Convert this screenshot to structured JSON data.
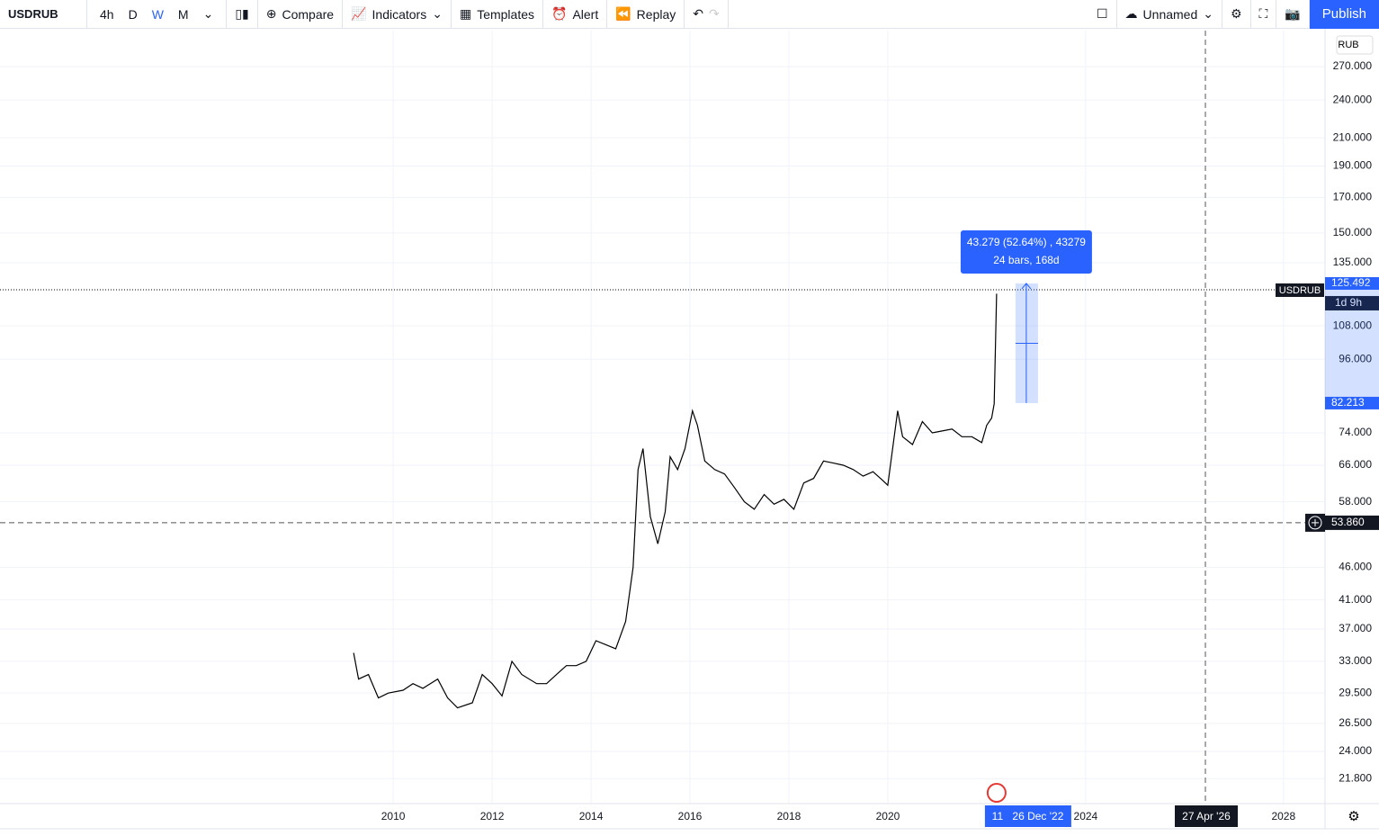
{
  "toolbar": {
    "symbol": "USDRUB",
    "intervals": [
      "4h",
      "D",
      "W",
      "M"
    ],
    "buttons": [
      "Compare",
      "Indicators",
      "Templates",
      "Alert",
      "Replay"
    ],
    "layout_name": "Unnamed",
    "publish": "Publish"
  },
  "chart_data": {
    "type": "line",
    "color": "#000000",
    "log_scale": true,
    "grid": true,
    "currency": "RUB",
    "x": [
      2009.2,
      2009.3,
      2009.5,
      2009.7,
      2009.9,
      2010.2,
      2010.4,
      2010.6,
      2010.9,
      2011.1,
      2011.3,
      2011.6,
      2011.8,
      2012.0,
      2012.2,
      2012.4,
      2012.6,
      2012.9,
      2013.1,
      2013.3,
      2013.5,
      2013.7,
      2013.9,
      2014.1,
      2014.3,
      2014.5,
      2014.7,
      2014.85,
      2014.95,
      2015.05,
      2015.2,
      2015.35,
      2015.5,
      2015.6,
      2015.75,
      2015.9,
      2016.05,
      2016.15,
      2016.3,
      2016.5,
      2016.7,
      2016.9,
      2017.1,
      2017.3,
      2017.5,
      2017.7,
      2017.9,
      2018.1,
      2018.3,
      2018.5,
      2018.7,
      2018.9,
      2019.1,
      2019.3,
      2019.5,
      2019.7,
      2019.9,
      2020.0,
      2020.2,
      2020.3,
      2020.5,
      2020.7,
      2020.9,
      2021.1,
      2021.3,
      2021.5,
      2021.7,
      2021.9,
      2022.0,
      2022.1,
      2022.15,
      2022.2
    ],
    "values": [
      34,
      31,
      31.5,
      29,
      29.5,
      29.8,
      30.5,
      30,
      31,
      29,
      28,
      28.5,
      31.5,
      30.5,
      29.2,
      33,
      31.5,
      30.5,
      30.5,
      31.5,
      32.5,
      32.5,
      33,
      35.5,
      35,
      34.5,
      38,
      46,
      65,
      70,
      55,
      50,
      56,
      68,
      65,
      70,
      80,
      76,
      67,
      65,
      64,
      61,
      58,
      56.5,
      59.5,
      57.5,
      58.5,
      56.5,
      62,
      63,
      67,
      66.5,
      66,
      65,
      63.5,
      64.5,
      62.5,
      61.5,
      80,
      73,
      71,
      77,
      74,
      74.5,
      75,
      73,
      73,
      71.5,
      76,
      78,
      82,
      121
    ],
    "xlim": [
      2002.05,
      2028.84
    ],
    "xticks": [
      2010,
      2012,
      2014,
      2016,
      2018,
      2020,
      2024,
      2028
    ],
    "ylim": [
      19.96,
      306.7
    ],
    "yticks": [
      {
        "value": 21.8,
        "label": "21.800"
      },
      {
        "value": 24,
        "label": "24.000"
      },
      {
        "value": 26.5,
        "label": "26.500"
      },
      {
        "value": 29.5,
        "label": "29.500"
      },
      {
        "value": 33,
        "label": "33.000"
      },
      {
        "value": 37,
        "label": "37.000"
      },
      {
        "value": 41,
        "label": "41.000"
      },
      {
        "value": 46,
        "label": "46.000"
      },
      {
        "value": 58,
        "label": "58.000"
      },
      {
        "value": 66,
        "label": "66.000"
      },
      {
        "value": 74,
        "label": "74.000"
      },
      {
        "value": 96,
        "label": "96.000"
      },
      {
        "value": 108,
        "label": "108.000"
      },
      {
        "value": 135,
        "label": "135.000"
      },
      {
        "value": 150,
        "label": "150.000"
      },
      {
        "value": 170,
        "label": "170.000"
      },
      {
        "value": 190,
        "label": "190.000"
      },
      {
        "value": 210,
        "label": "210.000"
      },
      {
        "value": 240,
        "label": "240.000"
      },
      {
        "value": 270,
        "label": "270.000"
      }
    ],
    "last_price": 125.492,
    "countdown": "1d 9h",
    "measure_low": 82.213,
    "crosshair_price": {
      "value": 53.86,
      "label": "53.860"
    },
    "measure_label": [
      "43.279 (52.64%) , 43279",
      "24 bars, 168d"
    ],
    "cursor_date": "26 Dec '22",
    "cursor_prefix": "11",
    "crosshair_date": "27 Apr '26"
  }
}
